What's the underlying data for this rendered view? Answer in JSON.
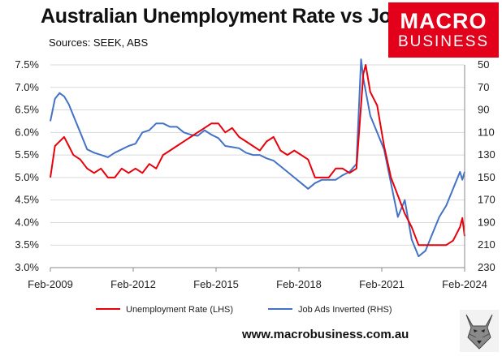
{
  "title": "Australian Unemployment Rate vs Job Ads",
  "subtitle": "Sources: SEEK, ABS",
  "logo": {
    "line1": "MACRO",
    "line2": "BUSINESS",
    "color": "#e2001a"
  },
  "url": "www.macrobusiness.com.au",
  "chart_data": {
    "type": "line",
    "x_ticks": [
      "Feb-2009",
      "Feb-2012",
      "Feb-2015",
      "Feb-2018",
      "Feb-2021",
      "Feb-2024"
    ],
    "y_left": {
      "ticks": [
        "3.0%",
        "3.5%",
        "4.0%",
        "4.5%",
        "5.0%",
        "5.5%",
        "6.0%",
        "6.5%",
        "7.0%",
        "7.5%"
      ],
      "range": [
        3.0,
        7.5
      ]
    },
    "y_right": {
      "ticks": [
        "50",
        "70",
        "90",
        "110",
        "130",
        "150",
        "170",
        "190",
        "210",
        "230"
      ],
      "range": [
        50,
        230
      ],
      "inverted": true
    },
    "grid": "horizontal",
    "legend_position": "bottom",
    "series": [
      {
        "name": "Unemployment Rate (LHS)",
        "axis": "left",
        "color": "#e8000b",
        "points": [
          [
            "2009-02",
            5.0
          ],
          [
            "2009-04",
            5.7
          ],
          [
            "2009-06",
            5.8
          ],
          [
            "2009-08",
            5.9
          ],
          [
            "2009-10",
            5.7
          ],
          [
            "2009-12",
            5.5
          ],
          [
            "2010-03",
            5.4
          ],
          [
            "2010-06",
            5.2
          ],
          [
            "2010-09",
            5.1
          ],
          [
            "2010-12",
            5.2
          ],
          [
            "2011-03",
            5.0
          ],
          [
            "2011-06",
            5.0
          ],
          [
            "2011-09",
            5.2
          ],
          [
            "2011-12",
            5.1
          ],
          [
            "2012-03",
            5.2
          ],
          [
            "2012-06",
            5.1
          ],
          [
            "2012-09",
            5.3
          ],
          [
            "2012-12",
            5.2
          ],
          [
            "2013-03",
            5.5
          ],
          [
            "2013-06",
            5.6
          ],
          [
            "2013-09",
            5.7
          ],
          [
            "2013-12",
            5.8
          ],
          [
            "2014-03",
            5.9
          ],
          [
            "2014-06",
            6.0
          ],
          [
            "2014-09",
            6.1
          ],
          [
            "2014-12",
            6.2
          ],
          [
            "2015-03",
            6.2
          ],
          [
            "2015-06",
            6.0
          ],
          [
            "2015-09",
            6.1
          ],
          [
            "2015-12",
            5.9
          ],
          [
            "2016-03",
            5.8
          ],
          [
            "2016-06",
            5.7
          ],
          [
            "2016-09",
            5.6
          ],
          [
            "2016-12",
            5.8
          ],
          [
            "2017-03",
            5.9
          ],
          [
            "2017-06",
            5.6
          ],
          [
            "2017-09",
            5.5
          ],
          [
            "2017-12",
            5.6
          ],
          [
            "2018-03",
            5.5
          ],
          [
            "2018-06",
            5.4
          ],
          [
            "2018-09",
            5.0
          ],
          [
            "2018-12",
            5.0
          ],
          [
            "2019-03",
            5.0
          ],
          [
            "2019-06",
            5.2
          ],
          [
            "2019-09",
            5.2
          ],
          [
            "2019-12",
            5.1
          ],
          [
            "2020-03",
            5.2
          ],
          [
            "2020-06",
            7.3
          ],
          [
            "2020-07",
            7.5
          ],
          [
            "2020-09",
            6.9
          ],
          [
            "2020-12",
            6.6
          ],
          [
            "2021-03",
            5.7
          ],
          [
            "2021-06",
            5.0
          ],
          [
            "2021-09",
            4.6
          ],
          [
            "2021-12",
            4.2
          ],
          [
            "2022-03",
            3.9
          ],
          [
            "2022-06",
            3.5
          ],
          [
            "2022-09",
            3.5
          ],
          [
            "2022-12",
            3.5
          ],
          [
            "2023-03",
            3.5
          ],
          [
            "2023-06",
            3.5
          ],
          [
            "2023-09",
            3.6
          ],
          [
            "2023-12",
            3.9
          ],
          [
            "2024-01",
            4.1
          ],
          [
            "2024-02",
            3.7
          ]
        ]
      },
      {
        "name": "Job Ads Inverted (RHS)",
        "axis": "right",
        "color": "#4472c4",
        "points": [
          [
            "2009-02",
            100
          ],
          [
            "2009-04",
            80
          ],
          [
            "2009-06",
            75
          ],
          [
            "2009-08",
            78
          ],
          [
            "2009-10",
            85
          ],
          [
            "2009-12",
            95
          ],
          [
            "2010-03",
            110
          ],
          [
            "2010-06",
            125
          ],
          [
            "2010-09",
            128
          ],
          [
            "2010-12",
            130
          ],
          [
            "2011-03",
            132
          ],
          [
            "2011-06",
            128
          ],
          [
            "2011-09",
            125
          ],
          [
            "2011-12",
            122
          ],
          [
            "2012-03",
            120
          ],
          [
            "2012-06",
            110
          ],
          [
            "2012-09",
            108
          ],
          [
            "2012-12",
            102
          ],
          [
            "2013-03",
            102
          ],
          [
            "2013-06",
            105
          ],
          [
            "2013-09",
            105
          ],
          [
            "2013-12",
            110
          ],
          [
            "2014-03",
            112
          ],
          [
            "2014-06",
            113
          ],
          [
            "2014-09",
            108
          ],
          [
            "2014-12",
            112
          ],
          [
            "2015-03",
            115
          ],
          [
            "2015-06",
            122
          ],
          [
            "2015-09",
            123
          ],
          [
            "2015-12",
            124
          ],
          [
            "2016-03",
            128
          ],
          [
            "2016-06",
            130
          ],
          [
            "2016-09",
            130
          ],
          [
            "2016-12",
            133
          ],
          [
            "2017-03",
            135
          ],
          [
            "2017-06",
            140
          ],
          [
            "2017-09",
            145
          ],
          [
            "2017-12",
            150
          ],
          [
            "2018-03",
            155
          ],
          [
            "2018-06",
            160
          ],
          [
            "2018-09",
            155
          ],
          [
            "2018-12",
            152
          ],
          [
            "2019-03",
            152
          ],
          [
            "2019-06",
            152
          ],
          [
            "2019-09",
            148
          ],
          [
            "2019-12",
            145
          ],
          [
            "2020-03",
            138
          ],
          [
            "2020-05",
            45
          ],
          [
            "2020-06",
            62
          ],
          [
            "2020-09",
            95
          ],
          [
            "2020-12",
            110
          ],
          [
            "2021-03",
            125
          ],
          [
            "2021-06",
            155
          ],
          [
            "2021-09",
            185
          ],
          [
            "2021-12",
            170
          ],
          [
            "2022-03",
            205
          ],
          [
            "2022-06",
            220
          ],
          [
            "2022-09",
            215
          ],
          [
            "2022-12",
            200
          ],
          [
            "2023-03",
            185
          ],
          [
            "2023-06",
            175
          ],
          [
            "2023-09",
            160
          ],
          [
            "2023-12",
            145
          ],
          [
            "2024-01",
            152
          ],
          [
            "2024-02",
            145
          ]
        ]
      }
    ]
  }
}
